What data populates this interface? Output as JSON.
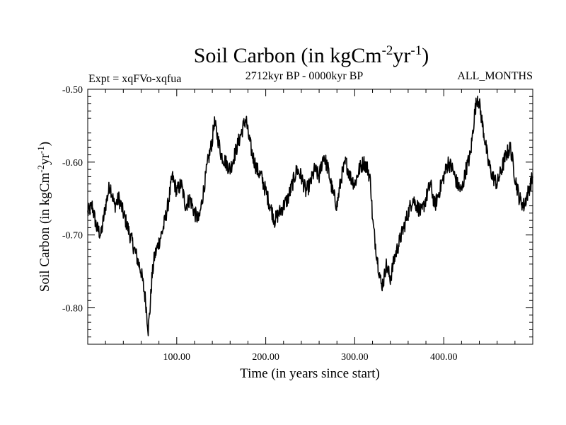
{
  "chart_data": {
    "type": "line",
    "title": {
      "main": "Soil Carbon (in kgCm",
      "sup1": "-2",
      "mid": "yr",
      "sup2": "-1",
      "end": ")"
    },
    "subtitle_left": "Expt = xqFVo-xqfua",
    "subtitle_center": "2712kyr BP - 0000kyr BP",
    "subtitle_right": "ALL_MONTHS",
    "xlabel": "Time (in years since start)",
    "ylabel": {
      "main": "Soil Carbon (in kgCm",
      "sup1": "-2",
      "mid": "yr",
      "sup2": "-1",
      "end": ")"
    },
    "xlim": [
      0,
      500
    ],
    "ylim": [
      -0.85,
      -0.5
    ],
    "x_ticks": [
      100,
      200,
      300,
      400
    ],
    "x_tick_labels": [
      "100.00",
      "200.00",
      "300.00",
      "400.00"
    ],
    "y_ticks": [
      -0.5,
      -0.6,
      -0.7,
      -0.8
    ],
    "y_tick_labels": [
      "-0.50",
      "-0.60",
      "-0.70",
      "-0.80"
    ],
    "series": [
      {
        "name": "Soil Carbon",
        "color": "#000000",
        "x": [
          0,
          5,
          10,
          15,
          20,
          25,
          30,
          35,
          40,
          45,
          50,
          55,
          60,
          65,
          68,
          70,
          72,
          75,
          80,
          85,
          90,
          95,
          100,
          105,
          110,
          115,
          120,
          125,
          130,
          135,
          140,
          142,
          145,
          150,
          155,
          160,
          165,
          170,
          175,
          178,
          180,
          185,
          190,
          195,
          200,
          205,
          210,
          215,
          220,
          225,
          230,
          235,
          240,
          245,
          250,
          255,
          260,
          265,
          270,
          275,
          280,
          285,
          290,
          295,
          300,
          305,
          310,
          315,
          318,
          320,
          325,
          330,
          333,
          335,
          340,
          345,
          350,
          355,
          360,
          365,
          370,
          375,
          380,
          385,
          390,
          395,
          400,
          405,
          410,
          415,
          420,
          425,
          430,
          435,
          438,
          440,
          445,
          450,
          455,
          460,
          465,
          470,
          475,
          480,
          485,
          490,
          495,
          500
        ],
        "y": [
          -0.67,
          -0.66,
          -0.69,
          -0.7,
          -0.66,
          -0.63,
          -0.66,
          -0.65,
          -0.67,
          -0.69,
          -0.71,
          -0.73,
          -0.75,
          -0.79,
          -0.83,
          -0.8,
          -0.76,
          -0.73,
          -0.71,
          -0.69,
          -0.66,
          -0.62,
          -0.64,
          -0.63,
          -0.66,
          -0.65,
          -0.67,
          -0.68,
          -0.64,
          -0.6,
          -0.57,
          -0.545,
          -0.56,
          -0.59,
          -0.6,
          -0.61,
          -0.59,
          -0.57,
          -0.55,
          -0.54,
          -0.56,
          -0.59,
          -0.61,
          -0.62,
          -0.64,
          -0.66,
          -0.68,
          -0.67,
          -0.66,
          -0.65,
          -0.63,
          -0.61,
          -0.62,
          -0.64,
          -0.63,
          -0.61,
          -0.62,
          -0.59,
          -0.61,
          -0.64,
          -0.66,
          -0.62,
          -0.6,
          -0.62,
          -0.63,
          -0.61,
          -0.6,
          -0.61,
          -0.63,
          -0.68,
          -0.73,
          -0.77,
          -0.76,
          -0.74,
          -0.76,
          -0.73,
          -0.71,
          -0.69,
          -0.67,
          -0.65,
          -0.66,
          -0.67,
          -0.65,
          -0.63,
          -0.66,
          -0.64,
          -0.62,
          -0.6,
          -0.61,
          -0.63,
          -0.64,
          -0.61,
          -0.59,
          -0.53,
          -0.51,
          -0.52,
          -0.56,
          -0.6,
          -0.62,
          -0.63,
          -0.61,
          -0.59,
          -0.58,
          -0.62,
          -0.65,
          -0.66,
          -0.64,
          -0.62
        ]
      }
    ]
  }
}
